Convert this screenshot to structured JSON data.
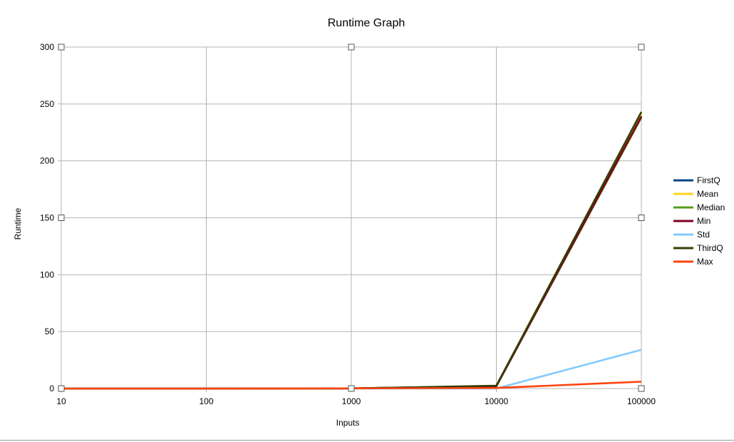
{
  "chart_data": {
    "type": "line",
    "title": "Runtime Graph",
    "xlabel": "Inputs",
    "ylabel": "Runtime",
    "x_scale": "log",
    "x": [
      10,
      100,
      1000,
      10000,
      100000
    ],
    "x_tick_labels": [
      "10",
      "100",
      "1000",
      "10000",
      "100000"
    ],
    "ylim": [
      0,
      300
    ],
    "y_ticks": [
      0,
      50,
      100,
      150,
      200,
      250,
      300
    ],
    "grid": true,
    "legend_position": "right",
    "series": [
      {
        "name": "FirstQ",
        "color": "#004586",
        "values": [
          0,
          0,
          0.1,
          2,
          240
        ]
      },
      {
        "name": "Mean",
        "color": "#ffd320",
        "values": [
          0,
          0,
          0.1,
          2,
          241
        ]
      },
      {
        "name": "Median",
        "color": "#579d1c",
        "values": [
          0,
          0,
          0.1,
          2,
          238
        ]
      },
      {
        "name": "Min",
        "color": "#7e0021",
        "values": [
          0,
          0,
          0.1,
          2,
          239
        ]
      },
      {
        "name": "Std",
        "color": "#83caff",
        "values": [
          0,
          0,
          0,
          0,
          34
        ]
      },
      {
        "name": "ThirdQ",
        "color": "#314004",
        "values": [
          0,
          0,
          0.1,
          2.5,
          243
        ]
      },
      {
        "name": "Max",
        "color": "#ff420e",
        "values": [
          0,
          0,
          0.1,
          0.5,
          6
        ]
      }
    ]
  }
}
